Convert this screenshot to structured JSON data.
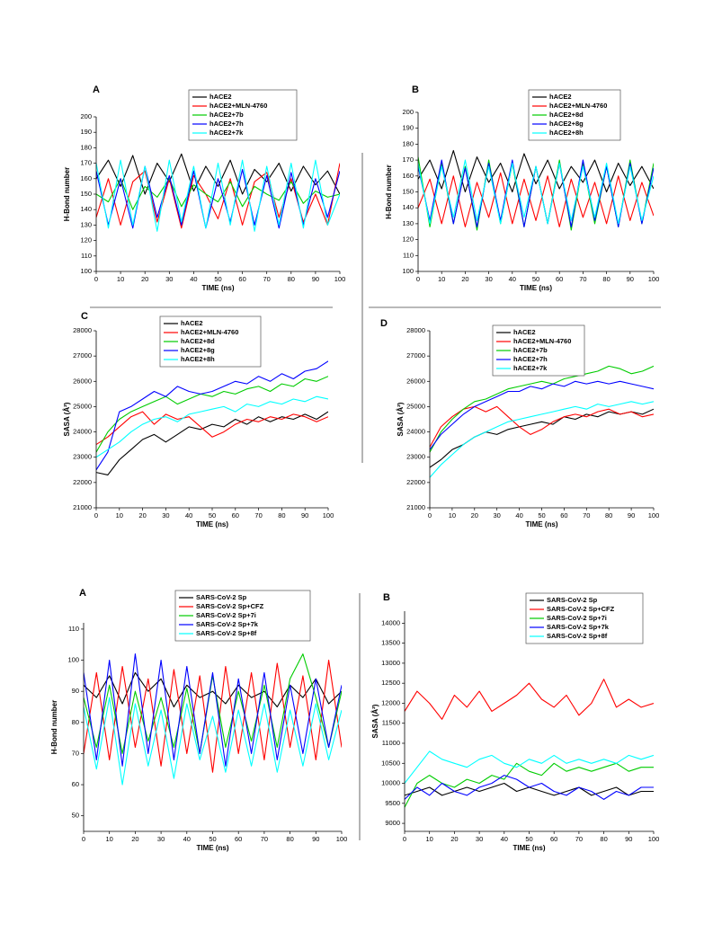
{
  "chart_data": [
    {
      "type": "line",
      "panel_label": "A",
      "xlabel": "TIME (ns)",
      "ylabel": "H-Bond number",
      "x": [
        0,
        5,
        10,
        15,
        20,
        25,
        30,
        35,
        40,
        45,
        50,
        55,
        60,
        65,
        70,
        75,
        80,
        85,
        90,
        95,
        100
      ],
      "xlim": [
        0,
        100
      ],
      "xticks": [
        0,
        10,
        20,
        30,
        40,
        50,
        60,
        70,
        80,
        90,
        100
      ],
      "ylim": [
        100,
        200
      ],
      "yticks": [
        100,
        110,
        120,
        130,
        140,
        150,
        160,
        170,
        180,
        190,
        200
      ],
      "series": [
        {
          "name": "hACE2",
          "color": "#000000",
          "values": [
            160,
            172,
            155,
            175,
            150,
            170,
            158,
            176,
            152,
            168,
            155,
            172,
            150,
            166,
            158,
            170,
            152,
            168,
            156,
            165,
            150
          ]
        },
        {
          "name": "hACE2+MLN-4760",
          "color": "#ff0000",
          "values": [
            135,
            160,
            130,
            158,
            165,
            132,
            160,
            128,
            162,
            150,
            134,
            160,
            130,
            158,
            164,
            135,
            160,
            132,
            150,
            130,
            170
          ]
        },
        {
          "name": "hACE2+7b",
          "color": "#00cc00",
          "values": [
            150,
            145,
            160,
            140,
            155,
            148,
            160,
            142,
            156,
            150,
            145,
            158,
            142,
            155,
            150,
            146,
            158,
            144,
            152,
            148,
            150
          ]
        },
        {
          "name": "hACE2+7h",
          "color": "#0000ff",
          "values": [
            165,
            130,
            160,
            128,
            168,
            135,
            162,
            130,
            165,
            128,
            160,
            132,
            166,
            130,
            162,
            128,
            164,
            130,
            160,
            135,
            165
          ]
        },
        {
          "name": "hACE2+7k",
          "color": "#00ffff",
          "values": [
            170,
            128,
            172,
            130,
            168,
            126,
            172,
            132,
            168,
            128,
            170,
            130,
            172,
            126,
            168,
            130,
            170,
            128,
            172,
            130,
            150
          ]
        }
      ]
    },
    {
      "type": "line",
      "panel_label": "B",
      "xlabel": "TIME (ns)",
      "ylabel": "H-Bond number",
      "x": [
        0,
        5,
        10,
        15,
        20,
        25,
        30,
        35,
        40,
        45,
        50,
        55,
        60,
        65,
        70,
        75,
        80,
        85,
        90,
        95,
        100
      ],
      "xlim": [
        0,
        100
      ],
      "xticks": [
        0,
        10,
        20,
        30,
        40,
        50,
        60,
        70,
        80,
        90,
        100
      ],
      "ylim": [
        100,
        200
      ],
      "yticks": [
        100,
        110,
        120,
        130,
        140,
        150,
        160,
        170,
        180,
        190,
        200
      ],
      "series": [
        {
          "name": "hACE2",
          "color": "#000000",
          "values": [
            158,
            170,
            152,
            176,
            150,
            172,
            156,
            168,
            150,
            174,
            155,
            170,
            152,
            166,
            156,
            170,
            150,
            168,
            154,
            166,
            152
          ]
        },
        {
          "name": "hACE2+MLN-4760",
          "color": "#ff0000",
          "values": [
            140,
            158,
            130,
            160,
            128,
            156,
            134,
            162,
            130,
            158,
            132,
            160,
            128,
            158,
            134,
            156,
            130,
            160,
            132,
            156,
            135
          ]
        },
        {
          "name": "hACE2+8d",
          "color": "#00cc00",
          "values": [
            172,
            128,
            168,
            130,
            166,
            126,
            170,
            130,
            168,
            128,
            166,
            130,
            170,
            126,
            168,
            130,
            166,
            128,
            170,
            130,
            168
          ]
        },
        {
          "name": "hACE2+8g",
          "color": "#0000ff",
          "values": [
            166,
            132,
            170,
            130,
            165,
            128,
            168,
            132,
            170,
            128,
            166,
            130,
            168,
            128,
            170,
            132,
            166,
            128,
            168,
            130,
            165
          ]
        },
        {
          "name": "hACE2+8h",
          "color": "#00ffff",
          "values": [
            168,
            130,
            166,
            134,
            170,
            132,
            166,
            130,
            168,
            134,
            166,
            130,
            168,
            132,
            166,
            134,
            168,
            130,
            166,
            132,
            160
          ]
        }
      ]
    },
    {
      "type": "line",
      "panel_label": "C",
      "xlabel": "TIME (ns)",
      "ylabel": "SASA (Å²)",
      "x": [
        0,
        5,
        10,
        15,
        20,
        25,
        30,
        35,
        40,
        45,
        50,
        55,
        60,
        65,
        70,
        75,
        80,
        85,
        90,
        95,
        100
      ],
      "xlim": [
        0,
        100
      ],
      "xticks": [
        0,
        10,
        20,
        30,
        40,
        50,
        60,
        70,
        80,
        90,
        100
      ],
      "ylim": [
        21000,
        28000
      ],
      "yticks": [
        21000,
        22000,
        23000,
        24000,
        25000,
        26000,
        27000,
        28000
      ],
      "series": [
        {
          "name": "hACE2",
          "color": "#000000",
          "values": [
            22400,
            22300,
            22900,
            23300,
            23700,
            23900,
            23600,
            23900,
            24200,
            24100,
            24300,
            24200,
            24500,
            24300,
            24600,
            24400,
            24600,
            24500,
            24700,
            24500,
            24800
          ]
        },
        {
          "name": "hACE2+MLN-4760",
          "color": "#ff0000",
          "values": [
            23500,
            23800,
            24200,
            24600,
            24800,
            24300,
            24700,
            24500,
            24600,
            24200,
            23800,
            24000,
            24300,
            24500,
            24400,
            24600,
            24500,
            24700,
            24600,
            24400,
            24600
          ]
        },
        {
          "name": "hACE2+8d",
          "color": "#00cc00",
          "values": [
            23200,
            24000,
            24500,
            24800,
            25000,
            25200,
            25400,
            25100,
            25300,
            25500,
            25400,
            25600,
            25500,
            25700,
            25800,
            25600,
            25900,
            25800,
            26100,
            26000,
            26200
          ]
        },
        {
          "name": "hACE2+8g",
          "color": "#0000ff",
          "values": [
            22500,
            23200,
            24800,
            25000,
            25300,
            25600,
            25400,
            25800,
            25600,
            25500,
            25600,
            25800,
            26000,
            25900,
            26200,
            26000,
            26300,
            26100,
            26400,
            26500,
            26800
          ]
        },
        {
          "name": "hACE2+8h",
          "color": "#00ffff",
          "values": [
            23000,
            23300,
            23600,
            24000,
            24300,
            24500,
            24600,
            24400,
            24700,
            24800,
            24900,
            25000,
            24800,
            25100,
            25000,
            25200,
            25100,
            25300,
            25200,
            25400,
            25300
          ]
        }
      ]
    },
    {
      "type": "line",
      "panel_label": "D",
      "xlabel": "TIME (ns)",
      "ylabel": "SASA (Å²)",
      "x": [
        0,
        5,
        10,
        15,
        20,
        25,
        30,
        35,
        40,
        45,
        50,
        55,
        60,
        65,
        70,
        75,
        80,
        85,
        90,
        95,
        100
      ],
      "xlim": [
        0,
        100
      ],
      "xticks": [
        0,
        10,
        20,
        30,
        40,
        50,
        60,
        70,
        80,
        90,
        100
      ],
      "ylim": [
        21000,
        28000
      ],
      "yticks": [
        21000,
        22000,
        23000,
        24000,
        25000,
        26000,
        27000,
        28000
      ],
      "series": [
        {
          "name": "hACE2",
          "color": "#000000",
          "values": [
            22600,
            22900,
            23300,
            23500,
            23800,
            24000,
            23900,
            24100,
            24200,
            24300,
            24400,
            24300,
            24600,
            24500,
            24700,
            24600,
            24800,
            24700,
            24800,
            24700,
            24900
          ]
        },
        {
          "name": "hACE2+MLN-4760",
          "color": "#ff0000",
          "values": [
            23400,
            24200,
            24600,
            24900,
            25000,
            24800,
            25000,
            24600,
            24200,
            23900,
            24100,
            24400,
            24600,
            24700,
            24600,
            24800,
            24900,
            24700,
            24800,
            24600,
            24700
          ]
        },
        {
          "name": "hACE2+7b",
          "color": "#00cc00",
          "values": [
            23200,
            24000,
            24500,
            24900,
            25200,
            25300,
            25500,
            25700,
            25800,
            25900,
            26000,
            25900,
            26100,
            26200,
            26300,
            26400,
            26600,
            26500,
            26300,
            26400,
            26600
          ]
        },
        {
          "name": "hACE2+7h",
          "color": "#0000ff",
          "values": [
            23300,
            23900,
            24300,
            24700,
            25000,
            25200,
            25400,
            25600,
            25600,
            25800,
            25700,
            25900,
            25800,
            26000,
            25900,
            26000,
            25900,
            26000,
            25900,
            25800,
            25700
          ]
        },
        {
          "name": "hACE2+7k",
          "color": "#00ffff",
          "values": [
            22200,
            22700,
            23100,
            23500,
            23800,
            24000,
            24200,
            24400,
            24500,
            24600,
            24700,
            24800,
            24900,
            25000,
            24900,
            25100,
            25000,
            25100,
            25200,
            25100,
            25200
          ]
        }
      ]
    },
    {
      "type": "line",
      "panel_label": "A",
      "xlabel": "TIME (ns)",
      "ylabel": "H-Bond number",
      "x": [
        0,
        5,
        10,
        15,
        20,
        25,
        30,
        35,
        40,
        45,
        50,
        55,
        60,
        65,
        70,
        75,
        80,
        85,
        90,
        95,
        100
      ],
      "xlim": [
        0,
        100
      ],
      "xticks": [
        0,
        10,
        20,
        30,
        40,
        50,
        60,
        70,
        80,
        90,
        100
      ],
      "ylim": [
        45,
        112
      ],
      "yticks": [
        50,
        60,
        70,
        80,
        90,
        100,
        110
      ],
      "series": [
        {
          "name": "SARS-CoV-2 Sp",
          "color": "#000000",
          "values": [
            92,
            88,
            95,
            86,
            96,
            90,
            94,
            85,
            92,
            88,
            90,
            86,
            92,
            88,
            90,
            85,
            92,
            88,
            94,
            86,
            90
          ]
        },
        {
          "name": "SARS-CoV-2 Sp+CFZ",
          "color": "#ff0000",
          "values": [
            70,
            96,
            68,
            98,
            72,
            94,
            66,
            97,
            70,
            95,
            64,
            98,
            70,
            96,
            68,
            99,
            72,
            95,
            68,
            100,
            72
          ]
        },
        {
          "name": "SARS-CoV-2 Sp+7i",
          "color": "#00cc00",
          "values": [
            88,
            72,
            92,
            70,
            90,
            74,
            88,
            72,
            91,
            70,
            95,
            72,
            90,
            74,
            92,
            72,
            94,
            102,
            88,
            72,
            90
          ]
        },
        {
          "name": "SARS-CoV-2 Sp+7k",
          "color": "#0000ff",
          "values": [
            96,
            68,
            100,
            66,
            102,
            70,
            100,
            68,
            98,
            70,
            96,
            66,
            94,
            70,
            96,
            68,
            92,
            70,
            94,
            72,
            92
          ]
        },
        {
          "name": "SARS-CoV-2 Sp+8f",
          "color": "#00ffff",
          "values": [
            85,
            65,
            88,
            60,
            86,
            66,
            84,
            62,
            86,
            68,
            82,
            64,
            84,
            66,
            86,
            64,
            84,
            66,
            86,
            68,
            84
          ]
        }
      ]
    },
    {
      "type": "line",
      "panel_label": "B",
      "xlabel": "TIME (ns)",
      "ylabel": "SASA (Å²)",
      "x": [
        0,
        5,
        10,
        15,
        20,
        25,
        30,
        35,
        40,
        45,
        50,
        55,
        60,
        65,
        70,
        75,
        80,
        85,
        90,
        95,
        100
      ],
      "xlim": [
        0,
        100
      ],
      "xticks": [
        0,
        10,
        20,
        30,
        40,
        50,
        60,
        70,
        80,
        90,
        100
      ],
      "ylim": [
        8800,
        14300
      ],
      "yticks": [
        9000,
        9500,
        10000,
        10500,
        11000,
        11500,
        12000,
        12500,
        13000,
        13500,
        14000
      ],
      "series": [
        {
          "name": "SARS-CoV-2 Sp",
          "color": "#000000",
          "values": [
            9700,
            9800,
            9900,
            9700,
            9800,
            9900,
            9800,
            9900,
            10000,
            9800,
            9900,
            9800,
            9700,
            9800,
            9900,
            9700,
            9800,
            9900,
            9700,
            9800,
            9800
          ]
        },
        {
          "name": "SARS-CoV-2 Sp+CFZ",
          "color": "#ff0000",
          "values": [
            11800,
            12300,
            12000,
            11600,
            12200,
            11900,
            12300,
            11800,
            12000,
            12200,
            12500,
            12100,
            11900,
            12200,
            11700,
            12000,
            12600,
            11900,
            12100,
            11900,
            12000
          ]
        },
        {
          "name": "SARS-CoV-2 Sp+7i",
          "color": "#00cc00",
          "values": [
            9400,
            10000,
            10200,
            10000,
            9900,
            10100,
            10000,
            10200,
            10100,
            10500,
            10300,
            10200,
            10500,
            10300,
            10400,
            10300,
            10400,
            10500,
            10300,
            10400,
            10400
          ]
        },
        {
          "name": "SARS-CoV-2 Sp+7k",
          "color": "#0000ff",
          "values": [
            9600,
            9900,
            9700,
            10000,
            9800,
            9700,
            9900,
            10000,
            10200,
            10100,
            9900,
            10000,
            9800,
            9700,
            9900,
            9800,
            9600,
            9800,
            9700,
            9900,
            9900
          ]
        },
        {
          "name": "SARS-CoV-2 Sp+8f",
          "color": "#00ffff",
          "values": [
            10000,
            10400,
            10800,
            10600,
            10500,
            10400,
            10600,
            10700,
            10500,
            10400,
            10600,
            10500,
            10700,
            10500,
            10600,
            10500,
            10600,
            10500,
            10700,
            10600,
            10700
          ]
        }
      ]
    }
  ]
}
